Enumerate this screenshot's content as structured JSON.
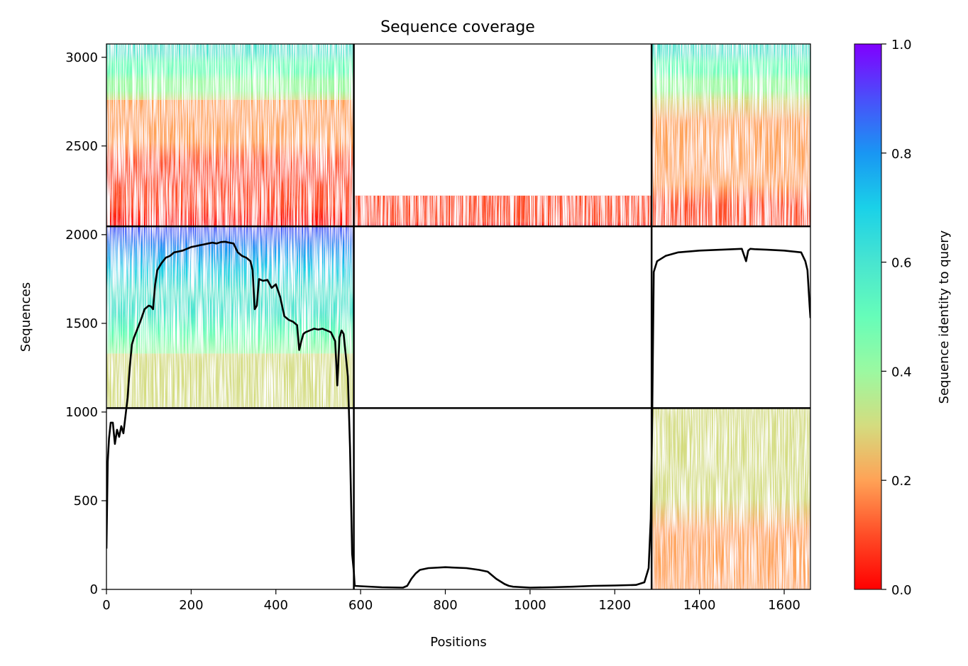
{
  "chart_data": {
    "type": "heatmap",
    "title": "Sequence coverage",
    "xlabel": "Positions",
    "ylabel": "Sequences",
    "xlim": [
      0,
      1662
    ],
    "ylim": [
      0,
      3075
    ],
    "x_ticks": [
      0,
      200,
      400,
      600,
      800,
      1000,
      1200,
      1400,
      1600
    ],
    "y_ticks": [
      0,
      500,
      1000,
      1500,
      2000,
      2500,
      3000
    ],
    "grid": false,
    "chain_boundaries_x": [
      584,
      1287
    ],
    "group_boundaries_y": [
      1022,
      2047
    ],
    "colormap": "rainbow_r",
    "colorbar": {
      "label": "Sequence identity to query",
      "range": [
        0,
        1
      ],
      "ticks": [
        "0.0",
        "0.2",
        "0.4",
        "0.6",
        "0.8",
        "1.0"
      ],
      "stops": [
        {
          "value": 0.0,
          "color": "#ff0000"
        },
        {
          "value": 0.1,
          "color": "#ff4d27"
        },
        {
          "value": 0.2,
          "color": "#ffa256"
        },
        {
          "value": 0.3,
          "color": "#d4dc7f"
        },
        {
          "value": 0.4,
          "color": "#9bf9a1"
        },
        {
          "value": 0.5,
          "color": "#66fdb9"
        },
        {
          "value": 0.6,
          "color": "#48e5d0"
        },
        {
          "value": 0.7,
          "color": "#1ad1e8"
        },
        {
          "value": 0.8,
          "color": "#1996f3"
        },
        {
          "value": 0.9,
          "color": "#4a4ffa"
        },
        {
          "value": 1.0,
          "color": "#8000ff"
        }
      ]
    },
    "msa_blocks": [
      {
        "x": [
          0,
          584
        ],
        "y": [
          2047,
          2760
        ],
        "identity": [
          0.05,
          0.2
        ]
      },
      {
        "x": [
          0,
          584
        ],
        "y": [
          2760,
          3075
        ],
        "identity": [
          0.35,
          0.62
        ]
      },
      {
        "x": [
          584,
          1287
        ],
        "y": [
          2047,
          2220
        ],
        "identity": [
          0.05,
          0.1
        ]
      },
      {
        "x": [
          1287,
          1662
        ],
        "y": [
          2047,
          2760
        ],
        "identity": [
          0.12,
          0.27
        ]
      },
      {
        "x": [
          1287,
          1662
        ],
        "y": [
          2760,
          3075
        ],
        "identity": [
          0.35,
          0.62
        ]
      },
      {
        "x": [
          0,
          584
        ],
        "y": [
          1022,
          1330
        ],
        "identity": [
          0.3,
          0.3
        ]
      },
      {
        "x": [
          0,
          584
        ],
        "y": [
          1330,
          2047
        ],
        "identity": [
          0.38,
          0.9
        ]
      },
      {
        "x": [
          1287,
          1662
        ],
        "y": [
          0,
          1022
        ],
        "identity": [
          0.22,
          0.3
        ]
      }
    ],
    "coverage_line": {
      "x": [
        0,
        3,
        6,
        10,
        15,
        20,
        25,
        30,
        35,
        40,
        45,
        50,
        55,
        60,
        65,
        70,
        80,
        90,
        100,
        105,
        110,
        115,
        120,
        130,
        140,
        150,
        160,
        170,
        180,
        190,
        200,
        210,
        220,
        230,
        240,
        250,
        260,
        270,
        280,
        290,
        300,
        310,
        320,
        330,
        340,
        345,
        350,
        355,
        360,
        370,
        380,
        390,
        400,
        410,
        420,
        430,
        440,
        450,
        455,
        460,
        465,
        470,
        480,
        490,
        500,
        510,
        520,
        530,
        540,
        545,
        550,
        555,
        560,
        570,
        575,
        580,
        584,
        586,
        600,
        650,
        700,
        710,
        720,
        730,
        740,
        760,
        800,
        850,
        880,
        900,
        920,
        940,
        950,
        960,
        1000,
        1050,
        1100,
        1150,
        1200,
        1250,
        1270,
        1280,
        1285,
        1288,
        1292,
        1300,
        1320,
        1350,
        1400,
        1450,
        1500,
        1510,
        1515,
        1520,
        1530,
        1560,
        1600,
        1640,
        1650,
        1655,
        1660,
        1662
      ],
      "y": [
        230,
        720,
        850,
        940,
        940,
        820,
        900,
        860,
        920,
        880,
        980,
        1080,
        1250,
        1380,
        1420,
        1450,
        1510,
        1580,
        1600,
        1595,
        1580,
        1720,
        1800,
        1840,
        1870,
        1880,
        1900,
        1905,
        1910,
        1920,
        1930,
        1935,
        1940,
        1945,
        1950,
        1955,
        1950,
        1958,
        1960,
        1955,
        1950,
        1900,
        1880,
        1870,
        1850,
        1800,
        1580,
        1600,
        1750,
        1740,
        1745,
        1700,
        1720,
        1650,
        1540,
        1520,
        1510,
        1490,
        1350,
        1400,
        1440,
        1450,
        1460,
        1470,
        1465,
        1470,
        1460,
        1450,
        1400,
        1150,
        1420,
        1460,
        1440,
        1200,
        800,
        200,
        100,
        20,
        18,
        12,
        10,
        20,
        60,
        90,
        110,
        120,
        125,
        120,
        110,
        100,
        60,
        30,
        20,
        15,
        10,
        12,
        15,
        20,
        22,
        25,
        40,
        120,
        400,
        900,
        1790,
        1850,
        1880,
        1900,
        1910,
        1915,
        1920,
        1850,
        1910,
        1920,
        1918,
        1915,
        1910,
        1900,
        1850,
        1800,
        1600,
        1530
      ]
    }
  }
}
